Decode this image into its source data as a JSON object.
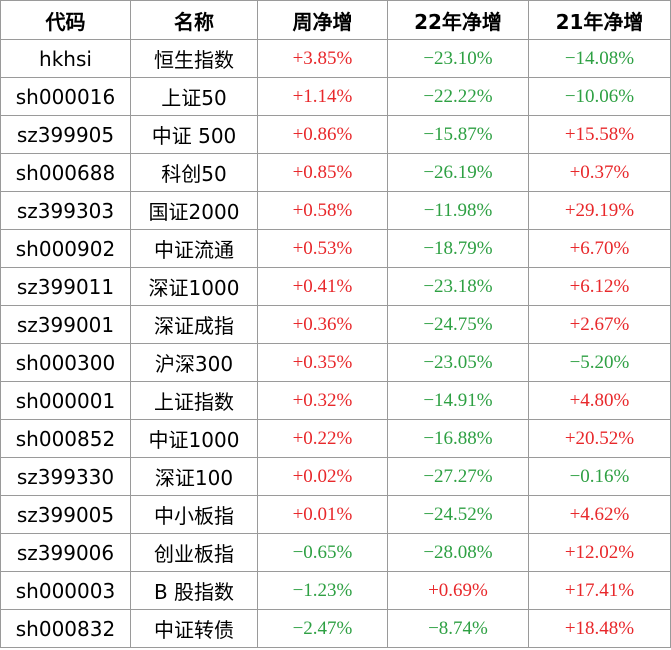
{
  "header": [
    "代码",
    "名称",
    "周净增",
    "22年净增",
    "21年净增"
  ],
  "rows": [
    [
      "hkhsi",
      "恒生指数",
      "+3.85%",
      "−23.10%",
      "−14.08%"
    ],
    [
      "sh000016",
      "上证50",
      "+1.14%",
      "−22.22%",
      "−10.06%"
    ],
    [
      "sz399905",
      "中证 500",
      "+0.86%",
      "−15.87%",
      "+15.58%"
    ],
    [
      "sh000688",
      "科创50",
      "+0.85%",
      "−26.19%",
      "+0.37%"
    ],
    [
      "sz399303",
      "国证2000",
      "+0.58%",
      "−11.98%",
      "+29.19%"
    ],
    [
      "sh000902",
      "中证流通",
      "+0.53%",
      "−18.79%",
      "+6.70%"
    ],
    [
      "sz399011",
      "深证1000",
      "+0.41%",
      "−23.18%",
      "+6.12%"
    ],
    [
      "sz399001",
      "深证成指",
      "+0.36%",
      "−24.75%",
      "+2.67%"
    ],
    [
      "sh000300",
      "沪深300",
      "+0.35%",
      "−23.05%",
      "−5.20%"
    ],
    [
      "sh000001",
      "上证指数",
      "+0.32%",
      "−14.91%",
      "+4.80%"
    ],
    [
      "sh000852",
      "中证1000",
      "+0.22%",
      "−16.88%",
      "+20.52%"
    ],
    [
      "sz399330",
      "深证100",
      "+0.02%",
      "−27.27%",
      "−0.16%"
    ],
    [
      "sz399005",
      "中小板指",
      "+0.01%",
      "−24.52%",
      "+4.62%"
    ],
    [
      "sz399006",
      "创业板指",
      "−0.65%",
      "−28.08%",
      "+12.02%"
    ],
    [
      "sh000003",
      "B 股指数",
      "−1.23%",
      "+0.69%",
      "+17.41%"
    ],
    [
      "sh000832",
      "中证转债",
      "−2.47%",
      "−8.74%",
      "+18.48%"
    ]
  ],
  "up_color": "#e8282b",
  "down_color": "#2ea043"
}
